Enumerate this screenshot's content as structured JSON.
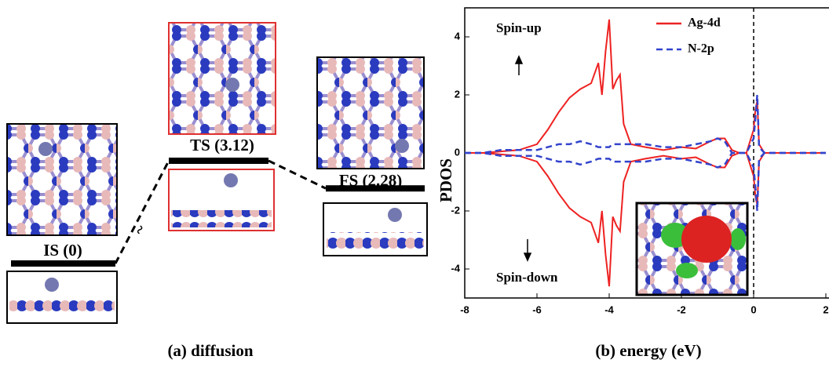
{
  "chart_data": [
    {
      "type": "energy-profile",
      "values": [
        0,
        3.12,
        2.28
      ],
      "value_labels": [
        "IS (0)",
        "TS (3.12)",
        "FS (2.28)"
      ],
      "break_mark": "~",
      "caption": "(a) diffusion"
    },
    {
      "type": "line",
      "caption": "(b) energy (eV)",
      "y_label": "PDOS",
      "annotations": [
        "Spin-up",
        "Spin-down"
      ],
      "xlim": [
        -8,
        2
      ],
      "ylim": [
        -5,
        5
      ],
      "xticks": [
        -8,
        -6,
        -4,
        -2,
        0,
        2
      ],
      "yticks": [
        -4,
        -2,
        0,
        2,
        4
      ],
      "vline": 0,
      "legend": "upper right",
      "x": [
        -8,
        -7.5,
        -7,
        -6.5,
        -6,
        -5.7,
        -5.4,
        -5.1,
        -4.8,
        -4.5,
        -4.3,
        -4.2,
        -4.1,
        -4,
        -3.9,
        -3.8,
        -3.7,
        -3.6,
        -3.4,
        -3,
        -2.5,
        -2,
        -1.6,
        -1.2,
        -1,
        -0.8,
        -0.6,
        -0.4,
        -0.2,
        0,
        0.05,
        0.1,
        0.15,
        0.3,
        1,
        2
      ],
      "series": [
        {
          "name": "Ag-4d",
          "color": "#ee2222",
          "dashed": false,
          "values": [
            0,
            0,
            0.05,
            0.1,
            0.3,
            0.8,
            1.4,
            1.9,
            2.2,
            2.4,
            3.1,
            2.0,
            3.5,
            4.6,
            2.2,
            2.5,
            2.7,
            1.0,
            0.3,
            0.2,
            0.1,
            0.2,
            0.15,
            0.4,
            0.5,
            0.5,
            0.1,
            0,
            0,
            0.8,
            1.5,
            1.8,
            0.3,
            0,
            0,
            0
          ],
          "values_down": [
            0,
            0,
            -0.05,
            -0.1,
            -0.3,
            -0.8,
            -1.4,
            -1.9,
            -2.2,
            -2.4,
            -3.1,
            -2.0,
            -3.5,
            -4.6,
            -2.2,
            -2.5,
            -2.7,
            -1.0,
            -0.3,
            -0.2,
            -0.1,
            -0.2,
            -0.15,
            -0.4,
            -0.5,
            -0.5,
            -0.1,
            0,
            0,
            -0.8,
            -1.5,
            -1.8,
            -0.3,
            0,
            0,
            0
          ]
        },
        {
          "name": "N-2p",
          "color": "#3344cc",
          "dashed": true,
          "values": [
            0,
            0,
            0.1,
            0.1,
            0.1,
            0.2,
            0.3,
            0.3,
            0.4,
            0.3,
            0.2,
            0.2,
            0.2,
            0.2,
            0.3,
            0.3,
            0.3,
            0.3,
            0.3,
            0.3,
            0.2,
            0.2,
            0.3,
            0.4,
            0.5,
            0.4,
            0,
            0,
            0,
            0.5,
            1.2,
            2.0,
            0.2,
            0,
            0,
            0
          ],
          "values_down": [
            0,
            0,
            -0.1,
            -0.1,
            -0.1,
            -0.2,
            -0.3,
            -0.3,
            -0.4,
            -0.3,
            -0.2,
            -0.2,
            -0.2,
            -0.2,
            -0.3,
            -0.3,
            -0.3,
            -0.3,
            -0.3,
            -0.3,
            -0.2,
            -0.2,
            -0.3,
            -0.4,
            -0.5,
            -0.4,
            0,
            0,
            0,
            -0.5,
            -1.2,
            -2.0,
            -0.2,
            0,
            0,
            0
          ]
        }
      ]
    }
  ]
}
